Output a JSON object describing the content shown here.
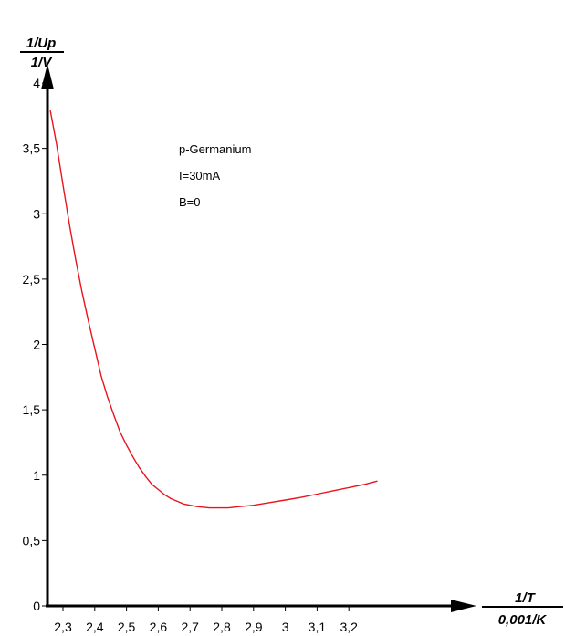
{
  "chart_data": {
    "type": "line",
    "title": "",
    "ylabel_num": "1/Up",
    "ylabel_den": "1/V",
    "xlabel_num": "1/T",
    "xlabel_den": "0,001/K",
    "xlim": [
      2.25,
      3.3
    ],
    "ylim": [
      0,
      4
    ],
    "xticks": [
      2.3,
      2.4,
      2.5,
      2.6,
      2.7,
      2.8,
      2.9,
      3.0,
      3.1,
      3.2
    ],
    "xtick_labels": [
      "2,3",
      "2,4",
      "2,5",
      "2,6",
      "2,7",
      "2,8",
      "2,9",
      "3",
      "3,1",
      "3,2"
    ],
    "yticks": [
      0,
      0.5,
      1,
      1.5,
      2,
      2.5,
      3,
      3.5,
      4
    ],
    "ytick_labels": [
      "0",
      "0,5",
      "1",
      "1,5",
      "2",
      "2,5",
      "3",
      "3,5",
      "4"
    ],
    "annotations": [
      "p-Germanium",
      "I=30mA",
      "B=0"
    ],
    "series": [
      {
        "color": "#e8141e",
        "x": [
          2.26,
          2.28,
          2.3,
          2.32,
          2.34,
          2.36,
          2.38,
          2.4,
          2.42,
          2.44,
          2.46,
          2.48,
          2.5,
          2.52,
          2.54,
          2.56,
          2.58,
          2.6,
          2.62,
          2.64,
          2.66,
          2.68,
          2.7,
          2.72,
          2.74,
          2.76,
          2.78,
          2.8,
          2.82,
          2.84,
          2.86,
          2.88,
          2.9,
          2.95,
          3.0,
          3.05,
          3.1,
          3.15,
          3.2,
          3.25,
          3.29
        ],
        "y": [
          3.79,
          3.53,
          3.22,
          2.92,
          2.65,
          2.4,
          2.18,
          1.97,
          1.76,
          1.6,
          1.46,
          1.33,
          1.23,
          1.14,
          1.06,
          0.99,
          0.93,
          0.89,
          0.85,
          0.82,
          0.8,
          0.78,
          0.77,
          0.76,
          0.755,
          0.75,
          0.75,
          0.75,
          0.75,
          0.755,
          0.76,
          0.765,
          0.77,
          0.79,
          0.81,
          0.83,
          0.855,
          0.88,
          0.905,
          0.93,
          0.955
        ]
      }
    ]
  }
}
